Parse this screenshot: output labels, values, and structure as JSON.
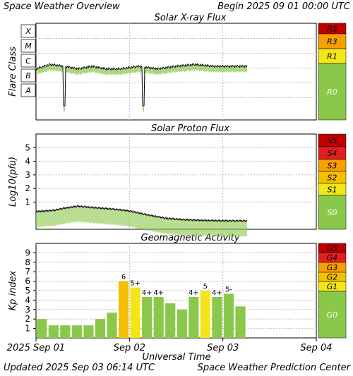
{
  "header": {
    "title": "Space Weather Overview",
    "begin": "Begin 2025 09 01 00:00 UTC"
  },
  "footer": {
    "updated": "Updated 2025 Sep 03 06:14 UTC",
    "credit": "Space Weather Prediction Center"
  },
  "x_axis": {
    "title": "Universal Time",
    "ticks": [
      {
        "label": "2025 Sep 01",
        "day": 0
      },
      {
        "label": "Sep 02",
        "day": 1
      },
      {
        "label": "Sep 03",
        "day": 2
      },
      {
        "label": "Sep 04",
        "day": 3
      }
    ]
  },
  "colors": {
    "green": "#8ac84a",
    "yellow": "#f2e61a",
    "orange": "#f5b400",
    "red": "#e02020",
    "darkred": "#c00000",
    "bar_green": "#8ac84a",
    "bar_yellow": "#f2e61a",
    "bar_orange": "#f5c000"
  },
  "chart_data": [
    {
      "type": "line",
      "title": "Solar X-ray Flux",
      "ylabel": "Flare Class",
      "y_classes": [
        "X",
        "M",
        "C",
        "B",
        "A"
      ],
      "x_range_days": [
        0,
        3
      ],
      "scale_labels": [
        {
          "label": "R5",
          "color": "#c00000"
        },
        {
          "label": "R3",
          "color": "#f5a000"
        },
        {
          "label": "R1",
          "color": "#f2e61a"
        },
        {
          "label": "R0",
          "color": "#8ac84a"
        }
      ],
      "series": [
        {
          "x_days": [
            0.0,
            0.15,
            0.3,
            0.45,
            0.6,
            0.75,
            0.9,
            1.1,
            1.3,
            1.5,
            1.7,
            1.9,
            2.1,
            2.26
          ],
          "flare_class": [
            "C2",
            "C4",
            "C3",
            "C2",
            "C3",
            "C2",
            "C2",
            "C3",
            "C2",
            "C3",
            "C4",
            "C3",
            "C3",
            "C3"
          ]
        }
      ],
      "dropouts_days": [
        0.3,
        1.15
      ]
    },
    {
      "type": "line",
      "title": "Solar Proton Flux",
      "ylabel": "Log10(pfu)",
      "yticks": [
        "5",
        "4",
        "3",
        "2",
        "1"
      ],
      "ylim": [
        -1,
        6
      ],
      "x_range_days": [
        0,
        3
      ],
      "scale_labels": [
        {
          "label": "S5",
          "color": "#c00000"
        },
        {
          "label": "S4",
          "color": "#e02020"
        },
        {
          "label": "S3",
          "color": "#f5a000"
        },
        {
          "label": "S2",
          "color": "#f5c000"
        },
        {
          "label": "S1",
          "color": "#f2e61a"
        },
        {
          "label": "S0",
          "color": "#8ac84a"
        }
      ],
      "series": [
        {
          "x_days": [
            0.0,
            0.2,
            0.3,
            0.45,
            0.6,
            0.8,
            1.0,
            1.2,
            1.4,
            1.6,
            1.8,
            2.0,
            2.26
          ],
          "log_pfu": [
            0.3,
            0.4,
            0.55,
            0.7,
            0.6,
            0.5,
            0.35,
            0.05,
            -0.2,
            -0.3,
            -0.35,
            -0.37,
            -0.38
          ]
        }
      ]
    },
    {
      "type": "bar",
      "title": "Geomagnetic Activity",
      "ylabel": "Kp index",
      "yticks": [
        "9",
        "8",
        "7",
        "6",
        "5",
        "4",
        "3",
        "2",
        "1"
      ],
      "ylim": [
        0,
        10
      ],
      "x_range_days": [
        0,
        3
      ],
      "scale_labels": [
        {
          "label": "G5",
          "color": "#c00000"
        },
        {
          "label": "G4",
          "color": "#e02020"
        },
        {
          "label": "G3",
          "color": "#f5a000"
        },
        {
          "label": "G2",
          "color": "#f5c000"
        },
        {
          "label": "G1",
          "color": "#f2e61a"
        },
        {
          "label": "G0",
          "color": "#8ac84a"
        }
      ],
      "bars": [
        {
          "kp": 2.0,
          "label": ""
        },
        {
          "kp": 1.33,
          "label": ""
        },
        {
          "kp": 1.33,
          "label": ""
        },
        {
          "kp": 1.33,
          "label": ""
        },
        {
          "kp": 1.33,
          "label": ""
        },
        {
          "kp": 2.0,
          "label": ""
        },
        {
          "kp": 2.67,
          "label": ""
        },
        {
          "kp": 6.0,
          "label": "6"
        },
        {
          "kp": 5.33,
          "label": "5+"
        },
        {
          "kp": 4.33,
          "label": "4+"
        },
        {
          "kp": 4.33,
          "label": "4+"
        },
        {
          "kp": 3.67,
          "label": ""
        },
        {
          "kp": 3.0,
          "label": ""
        },
        {
          "kp": 4.33,
          "label": "4+"
        },
        {
          "kp": 5.0,
          "label": "5"
        },
        {
          "kp": 4.33,
          "label": "4+"
        },
        {
          "kp": 4.67,
          "label": "5-"
        },
        {
          "kp": 3.33,
          "label": ""
        }
      ]
    }
  ]
}
